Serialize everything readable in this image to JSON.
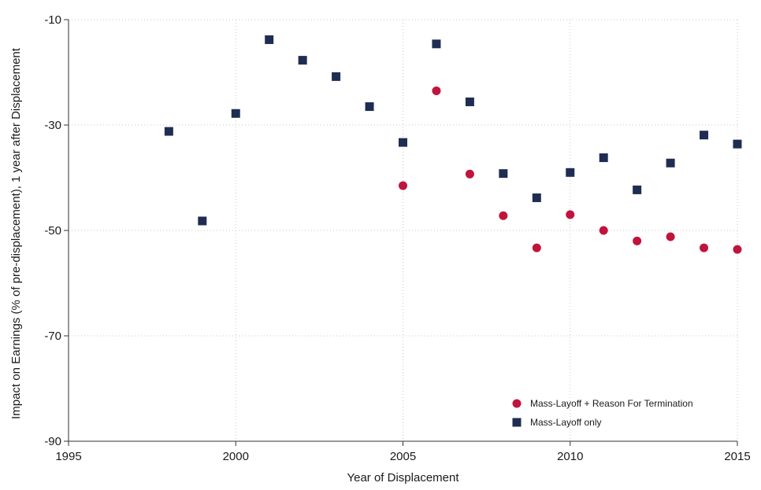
{
  "chart_data": {
    "type": "scatter",
    "title": "",
    "xlabel": "Year of Displacement",
    "ylabel": "Impact on Earnings (% of pre-displacement), 1 year after Displacement",
    "xlim": [
      1995,
      2015
    ],
    "ylim": [
      -90,
      -10
    ],
    "x_ticks": [
      "1995",
      "2000",
      "2005",
      "2010",
      "2015"
    ],
    "y_ticks": [
      "-10",
      "-30",
      "-50",
      "-70",
      "-90"
    ],
    "grid": true,
    "legend_position": "bottom-right",
    "series": [
      {
        "name": "Mass-Layoff + Reason For Termination",
        "marker": "circle",
        "color": "#c0143c",
        "points": [
          {
            "x": 2005,
            "y": -41.5
          },
          {
            "x": 2006,
            "y": -23.5
          },
          {
            "x": 2007,
            "y": -39.3
          },
          {
            "x": 2008,
            "y": -47.2
          },
          {
            "x": 2009,
            "y": -53.3
          },
          {
            "x": 2010,
            "y": -47.0
          },
          {
            "x": 2011,
            "y": -50.0
          },
          {
            "x": 2012,
            "y": -52.0
          },
          {
            "x": 2013,
            "y": -51.2
          },
          {
            "x": 2014,
            "y": -53.3
          },
          {
            "x": 2015,
            "y": -53.6
          }
        ]
      },
      {
        "name": "Mass-Layoff only",
        "marker": "square",
        "color": "#1f2d52",
        "points": [
          {
            "x": 1998,
            "y": -31.2
          },
          {
            "x": 1999,
            "y": -48.2
          },
          {
            "x": 2000,
            "y": -27.8
          },
          {
            "x": 2001,
            "y": -13.8
          },
          {
            "x": 2002,
            "y": -17.7
          },
          {
            "x": 2003,
            "y": -20.8
          },
          {
            "x": 2004,
            "y": -26.5
          },
          {
            "x": 2005,
            "y": -33.3
          },
          {
            "x": 2006,
            "y": -14.6
          },
          {
            "x": 2007,
            "y": -25.6
          },
          {
            "x": 2008,
            "y": -39.2
          },
          {
            "x": 2009,
            "y": -43.8
          },
          {
            "x": 2010,
            "y": -39.0
          },
          {
            "x": 2011,
            "y": -36.2
          },
          {
            "x": 2012,
            "y": -42.3
          },
          {
            "x": 2013,
            "y": -37.2
          },
          {
            "x": 2014,
            "y": -31.9
          },
          {
            "x": 2015,
            "y": -33.6
          }
        ]
      }
    ]
  }
}
